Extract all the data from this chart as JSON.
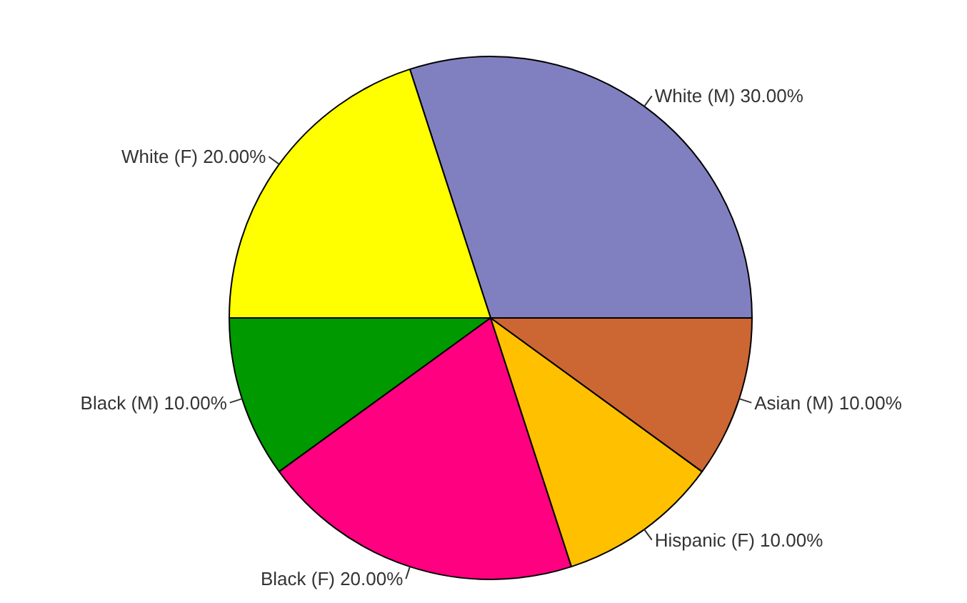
{
  "chart_data": {
    "type": "pie",
    "categories": [
      "White (M)",
      "White (F)",
      "Black (M)",
      "Black (F)",
      "Hispanic (F)",
      "Asian (M)"
    ],
    "values": [
      30,
      20,
      10,
      20,
      10,
      10
    ],
    "colors": [
      "#8080c0",
      "#ffff00",
      "#009900",
      "#ff0080",
      "#ffc000",
      "#cc6633"
    ],
    "value_labels": [
      "30.00%",
      "20.00%",
      "10.00%",
      "20.00%",
      "10.00%",
      "10.00%"
    ]
  }
}
